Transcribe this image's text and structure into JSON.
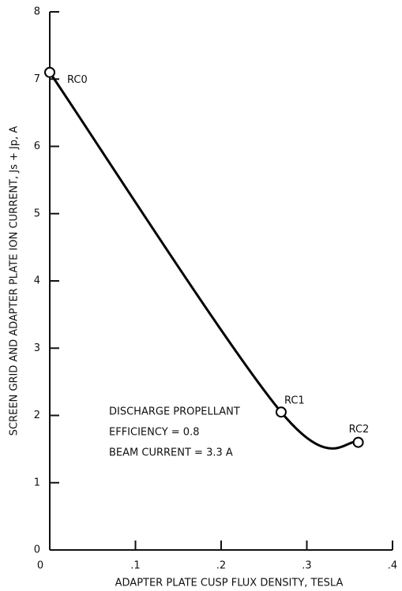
{
  "chart_data": {
    "type": "line",
    "x_label": "ADAPTER PLATE CUSP FLUX DENSITY, TESLA",
    "y_label": "SCREEN GRID AND ADAPTER PLATE ION CURRENT, Js + Jp, A",
    "x": [
      0,
      0.27,
      0.36
    ],
    "values": [
      7.1,
      2.05,
      1.6
    ],
    "point_labels": [
      "RC0",
      "RC1",
      "RC2"
    ],
    "color": "#000000",
    "xlim": [
      0,
      0.4
    ],
    "xticks": [
      0,
      {
        "value": 0.1,
        "label": ".1"
      },
      {
        "value": 0.2,
        "label": ".2"
      },
      {
        "value": 0.3,
        "label": ".3"
      },
      {
        "value": 0.4,
        "label": ".4"
      }
    ],
    "ylim": [
      0,
      8
    ],
    "yticks": [
      0,
      1,
      2,
      3,
      4,
      5,
      6,
      7,
      8
    ],
    "annotation": [
      "DISCHARGE PROPELLANT",
      "EFFICIENCY = 0.8",
      "BEAM CURRENT = 3.3 A"
    ]
  }
}
